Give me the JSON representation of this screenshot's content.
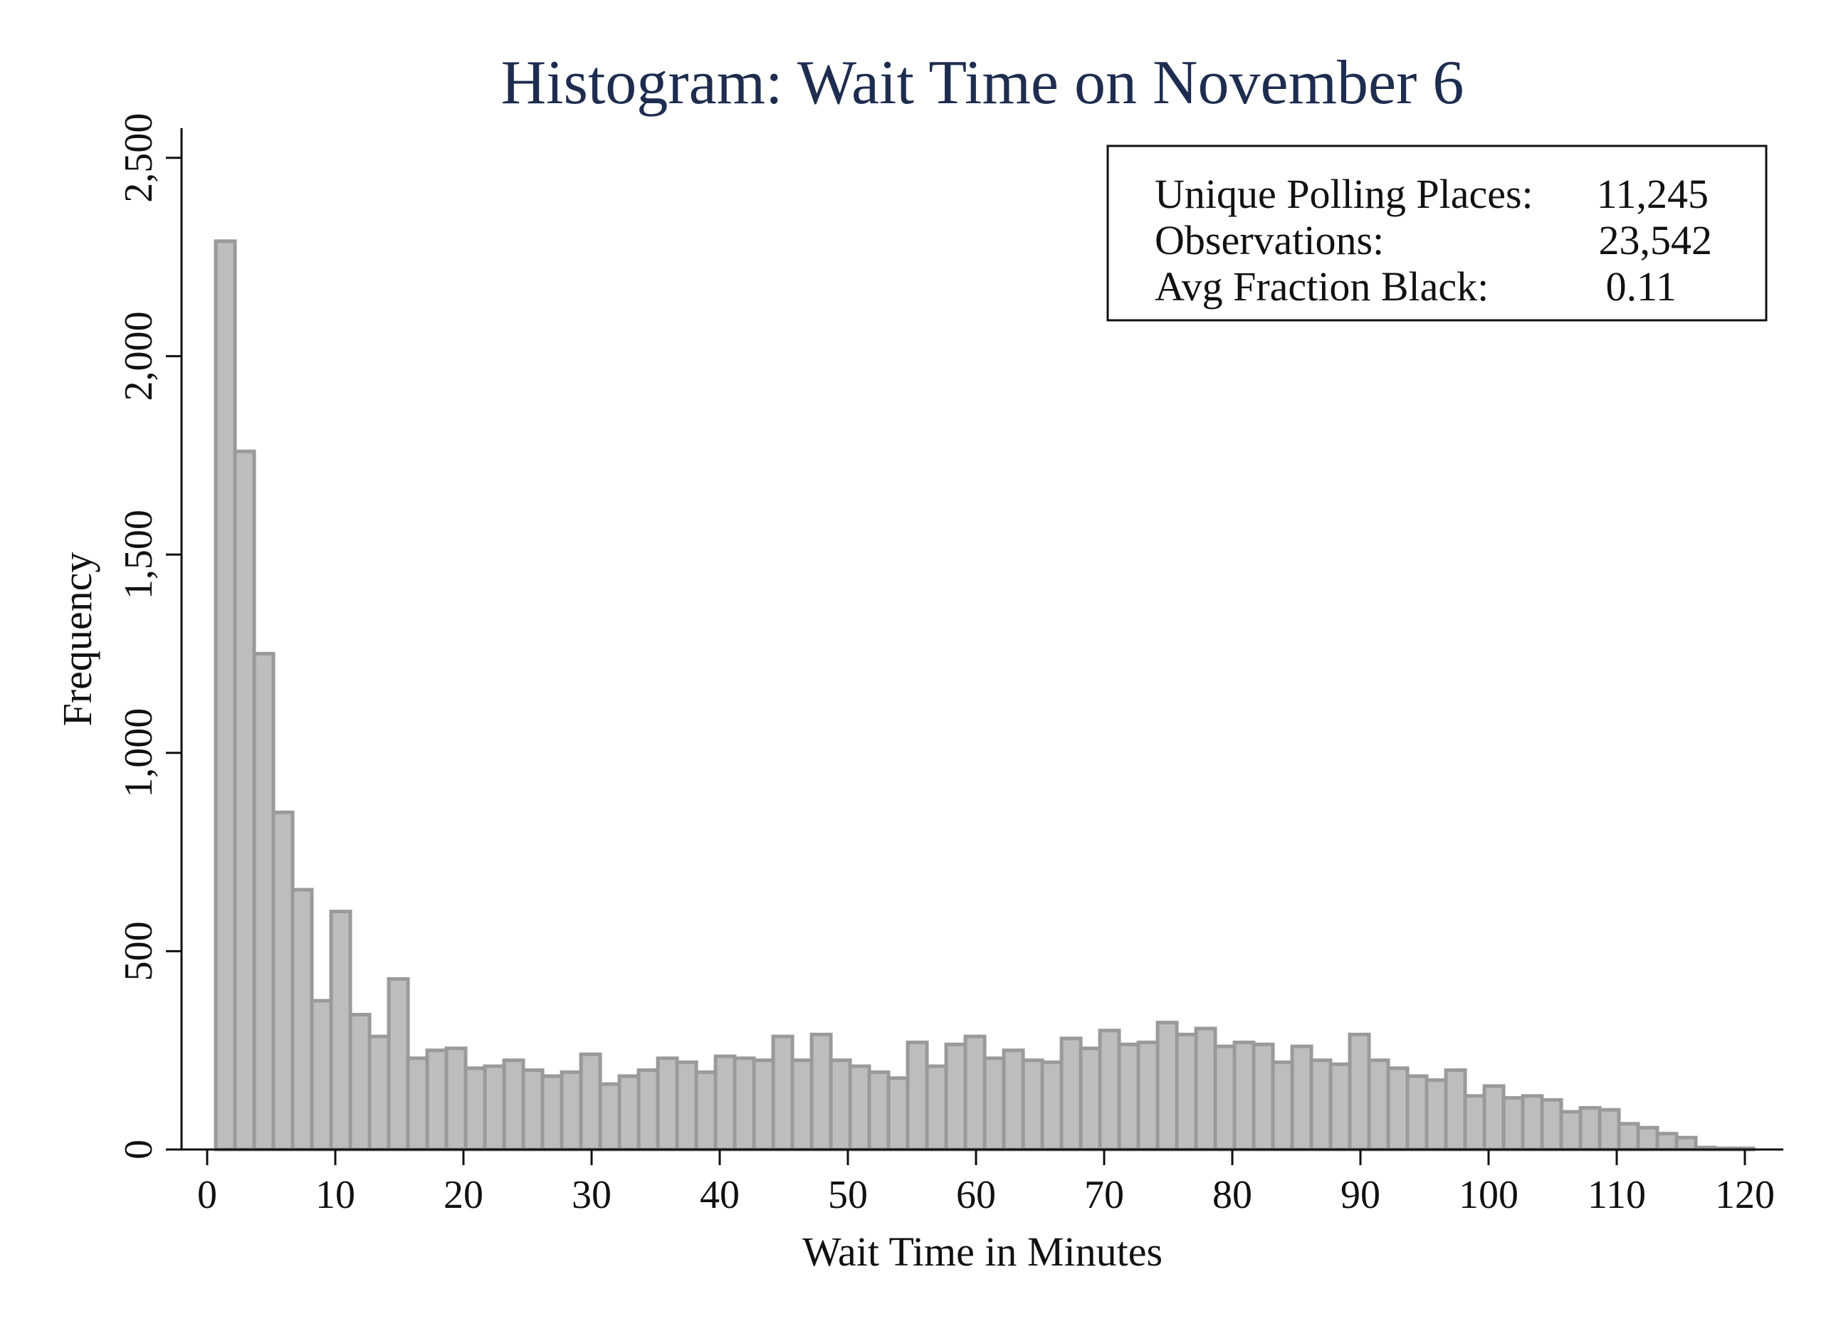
{
  "chart_data": {
    "type": "bar",
    "title": "Histogram: Wait Time on November 6",
    "xlabel": "Wait Time in Minutes",
    "ylabel": "Frequency",
    "xlim": [
      -2,
      123
    ],
    "ylim": [
      0,
      2575
    ],
    "x_ticks": [
      0,
      10,
      20,
      30,
      40,
      50,
      60,
      70,
      80,
      90,
      100,
      110,
      120
    ],
    "x_tick_labels": [
      "0",
      "10",
      "20",
      "30",
      "40",
      "50",
      "60",
      "70",
      "80",
      "90",
      "100",
      "110",
      "120"
    ],
    "y_ticks": [
      0,
      500,
      1000,
      1500,
      2000,
      2500
    ],
    "y_tick_labels": [
      "0",
      "500",
      "1,000",
      "1,500",
      "2,000",
      "2,500"
    ],
    "bin_start": 0.67,
    "bin_width": 1.5,
    "values": [
      2290,
      1760,
      1250,
      850,
      655,
      375,
      600,
      340,
      285,
      430,
      230,
      250,
      255,
      205,
      210,
      225,
      200,
      185,
      195,
      240,
      165,
      185,
      200,
      230,
      220,
      195,
      235,
      230,
      225,
      285,
      225,
      290,
      225,
      210,
      195,
      180,
      270,
      210,
      265,
      285,
      230,
      250,
      225,
      220,
      280,
      255,
      300,
      265,
      270,
      320,
      290,
      305,
      260,
      270,
      265,
      220,
      260,
      225,
      215,
      290,
      225,
      205,
      185,
      175,
      200,
      135,
      160,
      130,
      135,
      125,
      95,
      105,
      100,
      65,
      55,
      40,
      30,
      5,
      3,
      3
    ],
    "grid": false,
    "legend": false,
    "stats_box": {
      "position": "top-right",
      "rows": [
        {
          "label": "Unique Polling Places:",
          "value": "11,245"
        },
        {
          "label": "Observations:",
          "value": "23,542"
        },
        {
          "label": "Avg Fraction Black:",
          "value": "0.11"
        }
      ]
    },
    "colors": {
      "bar_fill": "#bdbdbd",
      "bar_stroke": "#9a9a9a",
      "title": "#1e2d4f",
      "axis": "#111111"
    }
  }
}
